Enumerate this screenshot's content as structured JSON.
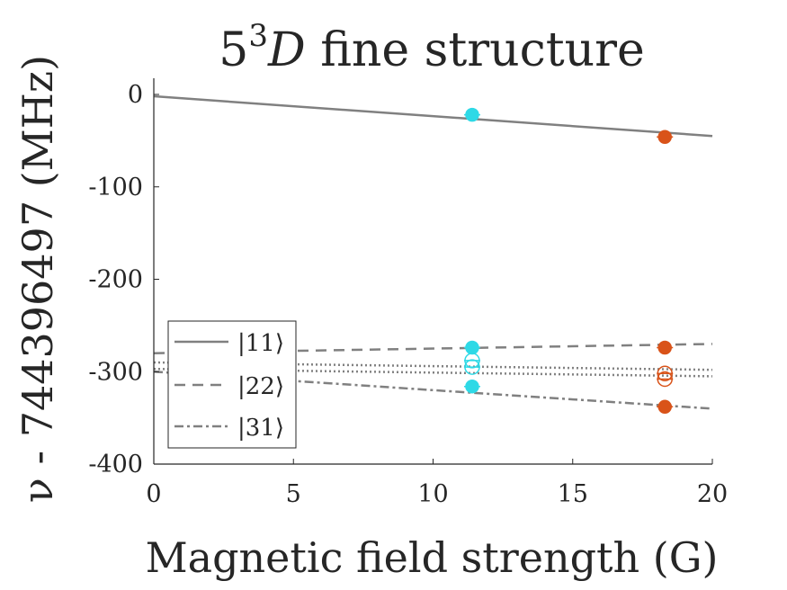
{
  "chart_data": {
    "type": "scatter",
    "title": "5³D fine structure",
    "title_parts": {
      "base": "5",
      "sup": "3",
      "term": "D",
      "rest": " fine structure"
    },
    "xlabel": "Magnetic field strength (G)",
    "ylabel": "ν - 744396497 (MHz)",
    "xlim": [
      0,
      20
    ],
    "ylim": [
      -400,
      0
    ],
    "x_ticks": [
      0,
      5,
      10,
      15,
      20
    ],
    "y_ticks": [
      0,
      -100,
      -200,
      -300,
      -400
    ],
    "grid": false,
    "legend_position": "bottom-left",
    "colors": {
      "line": "#808080",
      "cyan": "#2ED9E6",
      "orange": "#D95319",
      "axis": "#262626"
    },
    "lines": [
      {
        "name": "|11⟩",
        "style": "solid",
        "x": [
          0,
          20
        ],
        "y": [
          -2,
          -45
        ]
      },
      {
        "name": "|22⟩",
        "style": "dashed",
        "x": [
          0,
          20
        ],
        "y": [
          -280,
          -270
        ]
      },
      {
        "name": "|31⟩",
        "style": "dashdot",
        "x": [
          0,
          20
        ],
        "y": [
          -300,
          -340
        ]
      },
      {
        "style": "dotted",
        "x": [
          0,
          20
        ],
        "y": [
          -290,
          -298
        ]
      },
      {
        "style": "dotted",
        "x": [
          0,
          20
        ],
        "y": [
          -297,
          -305
        ]
      }
    ],
    "points": [
      {
        "x": 11.4,
        "y": -22,
        "color": "cyan",
        "filled": true
      },
      {
        "x": 11.4,
        "y": -274,
        "color": "cyan",
        "filled": true
      },
      {
        "x": 11.4,
        "y": -288,
        "color": "cyan",
        "filled": false
      },
      {
        "x": 11.4,
        "y": -295,
        "color": "cyan",
        "filled": false
      },
      {
        "x": 11.4,
        "y": -316,
        "color": "cyan",
        "filled": true
      },
      {
        "x": 18.3,
        "y": -46,
        "color": "orange",
        "filled": true
      },
      {
        "x": 18.3,
        "y": -274,
        "color": "orange",
        "filled": true
      },
      {
        "x": 18.3,
        "y": -302,
        "color": "orange",
        "filled": false
      },
      {
        "x": 18.3,
        "y": -308,
        "color": "orange",
        "filled": false
      },
      {
        "x": 18.3,
        "y": -338,
        "color": "orange",
        "filled": true
      }
    ],
    "legend": [
      "|11⟩",
      "|22⟩",
      "|31⟩"
    ]
  }
}
